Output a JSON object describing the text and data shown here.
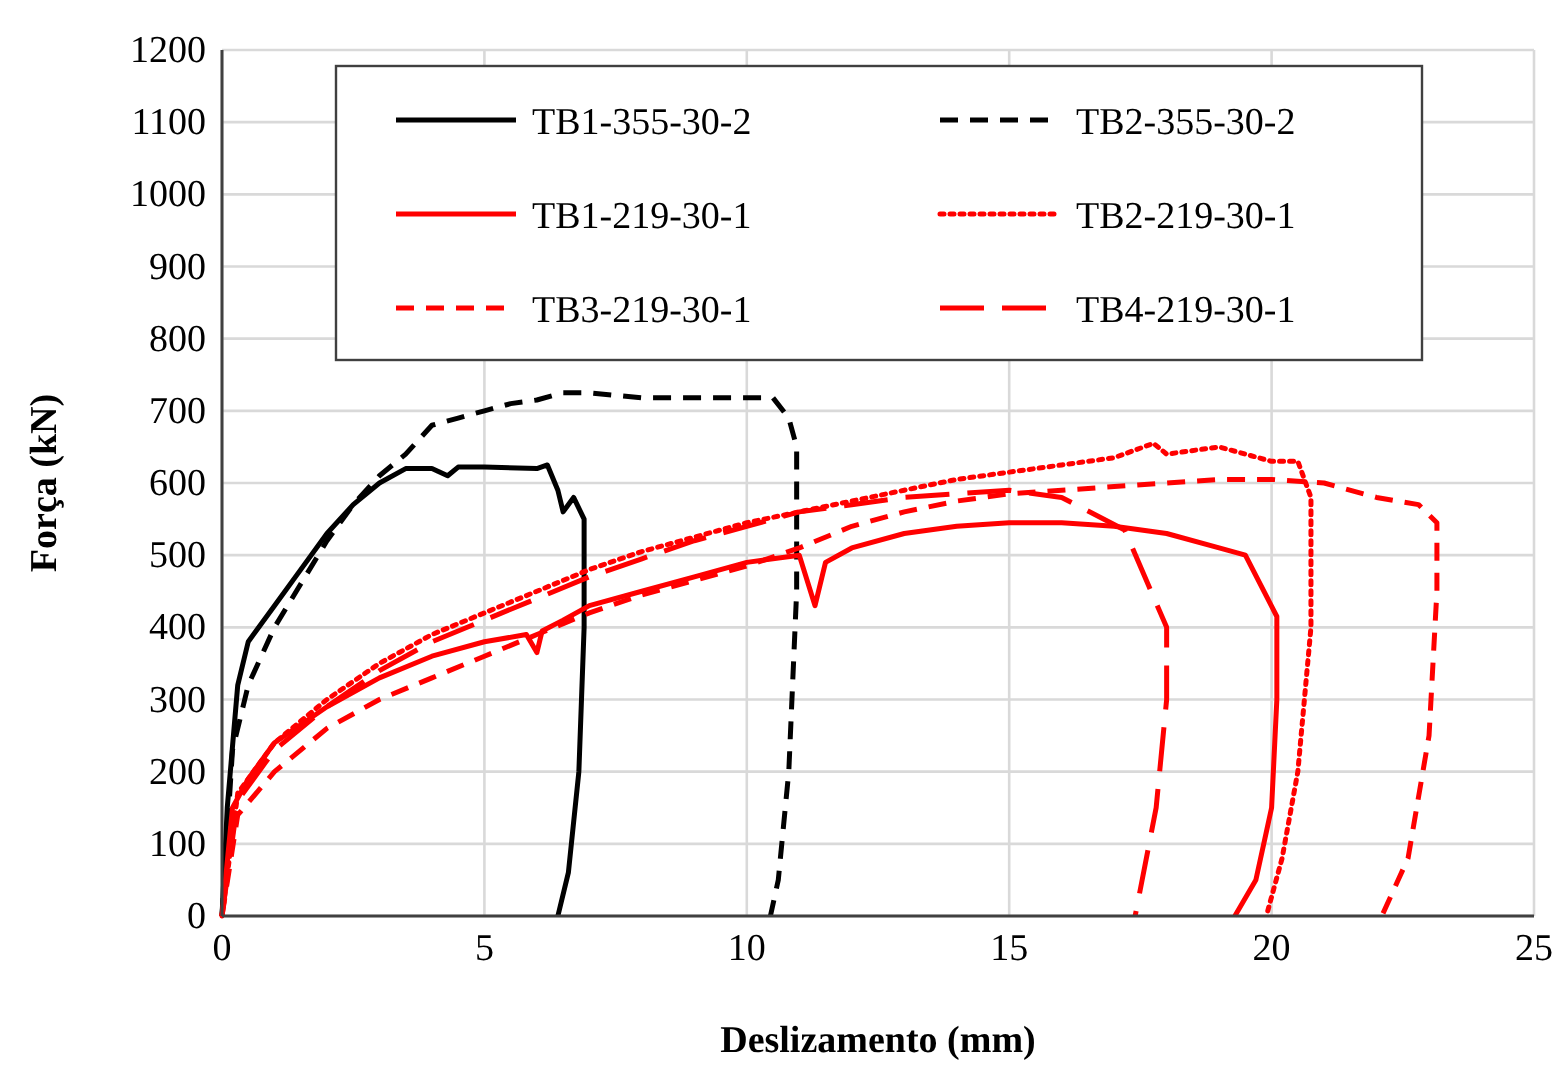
{
  "chart_data": {
    "type": "line",
    "xlabel": "Deslizamento (mm)",
    "ylabel": "Força (kN)",
    "xlim": [
      0,
      25
    ],
    "xticks": [
      0,
      5,
      10,
      15,
      20,
      25
    ],
    "ylim": [
      0,
      1200
    ],
    "yticks": [
      0,
      100,
      200,
      300,
      400,
      500,
      600,
      700,
      800,
      900,
      1000,
      1100,
      1200
    ],
    "grid": true,
    "legend": "top",
    "marker": "none",
    "series": [
      {
        "name": "TB1-355-30-2",
        "color": "#000000",
        "line_style": "solid",
        "x": [
          0,
          0.1,
          0.3,
          0.5,
          1,
          1.5,
          2,
          2.5,
          3,
          3.5,
          4,
          4.3,
          4.5,
          5,
          6,
          6.2,
          6.4,
          6.5,
          6.7,
          6.9,
          6.9,
          6.8,
          6.6,
          6.4
        ],
        "values": [
          0,
          150,
          320,
          380,
          430,
          480,
          530,
          570,
          600,
          620,
          620,
          610,
          622,
          622,
          620,
          625,
          590,
          560,
          580,
          550,
          400,
          200,
          60,
          0
        ]
      },
      {
        "name": "TB2-355-30-2",
        "color": "#000000",
        "line_style": "dashed",
        "x": [
          0,
          0.2,
          0.5,
          1,
          1.5,
          2,
          2.5,
          3,
          3.5,
          4,
          4.5,
          5,
          5.5,
          6,
          6.5,
          7,
          8,
          9,
          10,
          10.5,
          10.8,
          10.95,
          10.95,
          10.8,
          10.6,
          10.45
        ],
        "values": [
          0,
          230,
          320,
          400,
          460,
          520,
          570,
          610,
          640,
          680,
          690,
          700,
          710,
          715,
          725,
          725,
          718,
          718,
          718,
          718,
          690,
          650,
          450,
          200,
          50,
          0
        ]
      },
      {
        "name": "TB1-219-30-1",
        "color": "#ff0000",
        "line_style": "solid",
        "x": [
          0,
          0.2,
          0.5,
          1,
          2,
          3,
          4,
          5,
          5.8,
          6,
          6.1,
          6.5,
          7,
          8,
          9,
          10,
          11,
          11.3,
          11.5,
          12,
          13,
          14,
          15,
          16,
          17,
          18,
          19,
          19.5,
          20.1,
          20.1,
          20,
          19.7,
          19.3
        ],
        "values": [
          0,
          150,
          190,
          240,
          290,
          330,
          360,
          380,
          390,
          365,
          395,
          410,
          430,
          450,
          470,
          490,
          500,
          430,
          490,
          510,
          530,
          540,
          545,
          545,
          540,
          530,
          510,
          500,
          415,
          300,
          150,
          50,
          0
        ]
      },
      {
        "name": "TB2-219-30-1",
        "color": "#ff0000",
        "line_style": "dotted",
        "x": [
          0,
          0.3,
          1,
          2,
          3,
          4,
          5,
          6,
          7,
          8,
          9,
          10,
          11,
          12,
          13,
          14,
          15,
          16,
          17,
          17.75,
          18,
          19,
          19.5,
          20,
          20.5,
          20.75,
          20.75,
          20.5,
          20.2,
          19.9
        ],
        "values": [
          0,
          170,
          240,
          300,
          350,
          390,
          420,
          450,
          480,
          505,
          525,
          545,
          560,
          575,
          590,
          605,
          615,
          625,
          635,
          655,
          640,
          650,
          640,
          630,
          630,
          580,
          400,
          200,
          80,
          0
        ]
      },
      {
        "name": "TB3-219-30-1",
        "color": "#ff0000",
        "line_style": "dashed",
        "x": [
          0,
          0.3,
          1,
          2,
          3,
          4,
          5,
          6,
          7,
          8,
          9,
          10,
          11,
          12,
          13,
          14,
          15,
          16,
          17,
          18,
          19,
          20,
          21,
          22,
          22.8,
          23.15,
          23.15,
          23,
          22.6,
          22.1
        ],
        "values": [
          0,
          140,
          200,
          260,
          300,
          330,
          360,
          390,
          420,
          445,
          465,
          485,
          510,
          540,
          560,
          575,
          585,
          590,
          595,
          600,
          605,
          605,
          600,
          580,
          570,
          545,
          450,
          250,
          80,
          0
        ]
      },
      {
        "name": "TB4-219-30-1",
        "color": "#ff0000",
        "line_style": "longdash",
        "x": [
          0,
          0.3,
          1,
          2,
          3,
          4,
          5,
          6,
          7,
          8,
          9,
          10,
          11,
          12,
          13,
          14,
          15,
          16,
          17.2,
          18,
          18,
          17.8,
          17.4
        ],
        "values": [
          0,
          160,
          230,
          290,
          340,
          380,
          410,
          440,
          470,
          495,
          520,
          540,
          560,
          570,
          580,
          585,
          590,
          580,
          535,
          400,
          300,
          150,
          0
        ]
      }
    ]
  }
}
